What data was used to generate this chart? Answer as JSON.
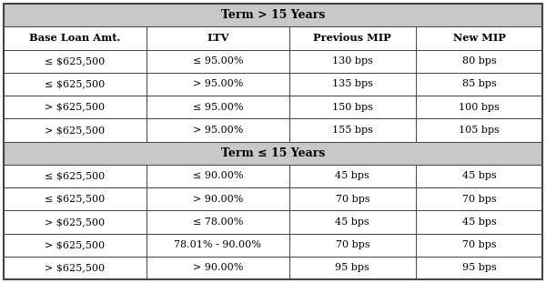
{
  "header1": "Term > 15 Years",
  "header2": "Term ≤ 15 Years",
  "col_headers": [
    "Base Loan Amt.",
    "LTV",
    "Previous MIP",
    "New MIP"
  ],
  "section1_rows": [
    [
      "≤ $625,500",
      "≤ 95.00%",
      "130 bps",
      "80 bps"
    ],
    [
      "≤ $625,500",
      "> 95.00%",
      "135 bps",
      "85 bps"
    ],
    [
      "> $625,500",
      "≤ 95.00%",
      "150 bps",
      "100 bps"
    ],
    [
      "> $625,500",
      "> 95.00%",
      "155 bps",
      "105 bps"
    ]
  ],
  "section2_rows": [
    [
      "≤ $625,500",
      "≤ 90.00%",
      "45 bps",
      "45 bps"
    ],
    [
      "≤ $625,500",
      "> 90.00%",
      "70 bps",
      "70 bps"
    ],
    [
      "> $625,500",
      "≤ 78.00%",
      "45 bps",
      "45 bps"
    ],
    [
      "> $625,500",
      "78.01% - 90.00%",
      "70 bps",
      "70 bps"
    ],
    [
      "> $625,500",
      "> 90.00%",
      "95 bps",
      "95 bps"
    ]
  ],
  "header_bg": "#c8c8c8",
  "col_header_bg": "#ffffff",
  "row_bg": "#ffffff",
  "border_color": "#444444",
  "text_color": "#000000",
  "figsize": [
    6.0,
    3.11
  ],
  "dpi": 100,
  "header_fontsize": 9.0,
  "col_header_fontsize": 8.2,
  "data_fontsize": 8.0
}
